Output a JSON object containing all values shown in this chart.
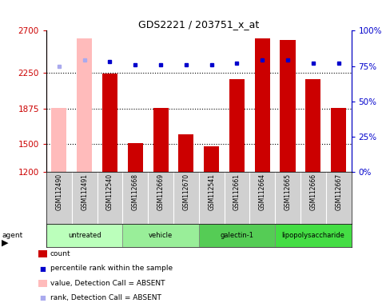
{
  "title": "GDS2221 / 203751_x_at",
  "samples": [
    "GSM112490",
    "GSM112491",
    "GSM112540",
    "GSM112668",
    "GSM112669",
    "GSM112670",
    "GSM112541",
    "GSM112661",
    "GSM112664",
    "GSM112665",
    "GSM112666",
    "GSM112667"
  ],
  "counts": [
    null,
    null,
    2247,
    1503,
    1878,
    1596,
    1468,
    2185,
    2617,
    2605,
    2185,
    1878
  ],
  "counts_absent": [
    1878,
    2617,
    null,
    null,
    null,
    null,
    null,
    null,
    null,
    null,
    null,
    null
  ],
  "rank_values": [
    null,
    null,
    78,
    76,
    76,
    76,
    76,
    77,
    79,
    79,
    77,
    77
  ],
  "rank_values_absent": [
    75,
    79,
    null,
    null,
    null,
    null,
    null,
    null,
    null,
    null,
    null,
    null
  ],
  "agents": [
    {
      "label": "untreated",
      "start": 0,
      "end": 3,
      "color": "#bbffbb"
    },
    {
      "label": "vehicle",
      "start": 3,
      "end": 6,
      "color": "#99ee99"
    },
    {
      "label": "galectin-1",
      "start": 6,
      "end": 9,
      "color": "#55cc55"
    },
    {
      "label": "lipopolysaccharide",
      "start": 9,
      "end": 12,
      "color": "#44dd44"
    }
  ],
  "ylim_left": [
    1200,
    2700
  ],
  "ylim_right": [
    0,
    100
  ],
  "yticks_left": [
    1200,
    1500,
    1875,
    2250,
    2700
  ],
  "yticks_right": [
    0,
    25,
    50,
    75,
    100
  ],
  "bar_color": "#cc0000",
  "absent_bar_color": "#ffbbbb",
  "dot_color": "#0000cc",
  "absent_dot_color": "#aaaaee",
  "background_color": "#ffffff"
}
